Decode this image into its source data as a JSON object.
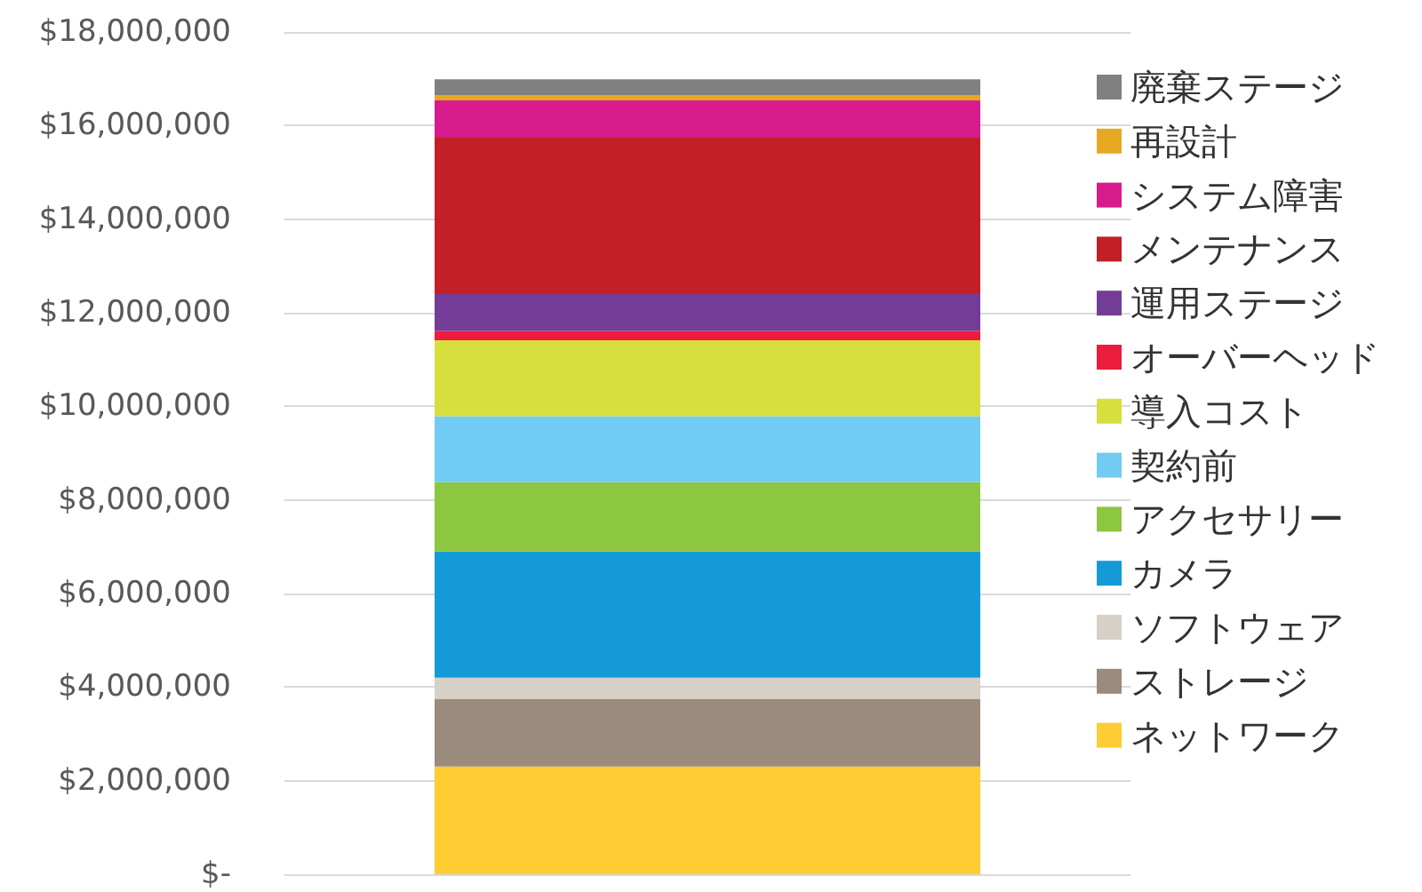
{
  "chart_data": {
    "type": "bar",
    "stacked": true,
    "categories": [
      null
    ],
    "series": [
      {
        "name": "ネットワーク",
        "color": "#ffcc33",
        "values": [
          2300000
        ]
      },
      {
        "name": "ストレージ",
        "color": "#9b8b7c",
        "values": [
          1450000
        ]
      },
      {
        "name": "ソフトウェア",
        "color": "#d7d0c7",
        "values": [
          450000
        ]
      },
      {
        "name": "カメラ",
        "color": "#149bd7",
        "values": [
          2700000
        ]
      },
      {
        "name": "アクセサリー",
        "color": "#8dc63f",
        "values": [
          1480000
        ]
      },
      {
        "name": "契約前",
        "color": "#72cbf2",
        "values": [
          1410000
        ]
      },
      {
        "name": "導入コスト",
        "color": "#d7df3f",
        "values": [
          1620000
        ]
      },
      {
        "name": "オーバーヘッド",
        "color": "#ec1c3c",
        "values": [
          200000
        ]
      },
      {
        "name": "運用ステージ",
        "color": "#733c96",
        "values": [
          790000
        ]
      },
      {
        "name": "メンテナンス",
        "color": "#c02026",
        "values": [
          3340000
        ]
      },
      {
        "name": "システム障害",
        "color": "#d81b8c",
        "values": [
          800000
        ]
      },
      {
        "name": "再設計",
        "color": "#e6a823",
        "values": [
          110000
        ]
      },
      {
        "name": "廃棄ステージ",
        "color": "#808080",
        "values": [
          340000
        ]
      }
    ],
    "ylim": [
      0,
      18000000
    ],
    "yticks": [
      {
        "value": 0,
        "label": "$-"
      },
      {
        "value": 2000000,
        "label": "$2,000,000"
      },
      {
        "value": 4000000,
        "label": "$4,000,000"
      },
      {
        "value": 6000000,
        "label": "$6,000,000"
      },
      {
        "value": 8000000,
        "label": "$8,000,000"
      },
      {
        "value": 10000000,
        "label": "$10,000,000"
      },
      {
        "value": 12000000,
        "label": "$12,000,000"
      },
      {
        "value": 14000000,
        "label": "$14,000,000"
      },
      {
        "value": 16000000,
        "label": "$16,000,000"
      },
      {
        "value": 18000000,
        "label": "$18,000,000"
      }
    ],
    "grid": "y",
    "legend": "right"
  }
}
